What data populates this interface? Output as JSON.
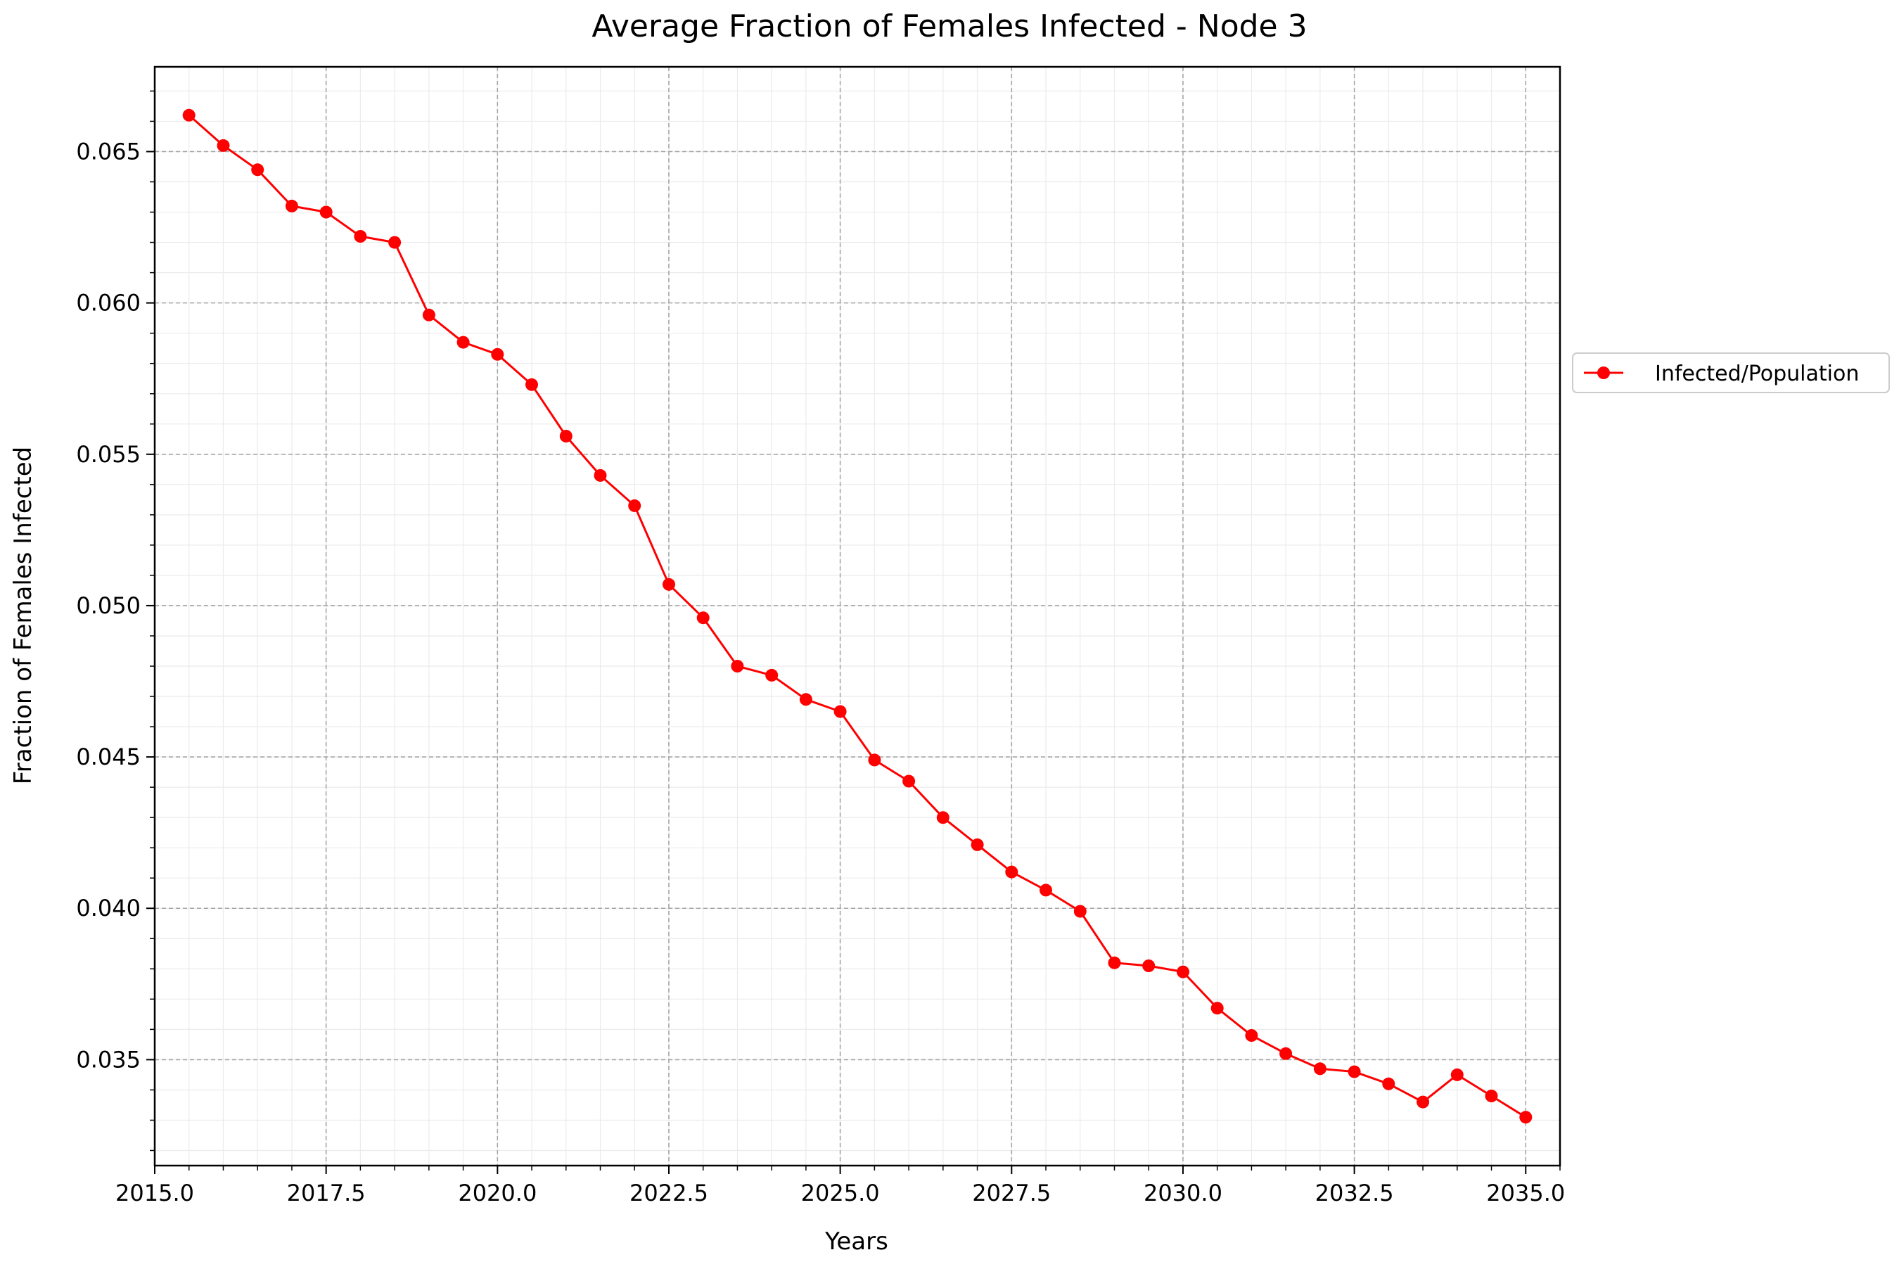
{
  "chart_data": {
    "type": "line",
    "title": "Average Fraction of Females Infected - Node 3",
    "xlabel": "Years",
    "ylabel": "Fraction of Females Infected",
    "xlim": [
      2015.0,
      2035.5
    ],
    "ylim": [
      0.0315,
      0.0678
    ],
    "x_ticks": [
      "2015.0",
      "2017.5",
      "2020.0",
      "2022.5",
      "2025.0",
      "2027.5",
      "2030.0",
      "2032.5",
      "2035.0"
    ],
    "y_ticks": [
      "0.035",
      "0.040",
      "0.045",
      "0.050",
      "0.055",
      "0.060",
      "0.065"
    ],
    "grid": true,
    "minor_grid": true,
    "legend_position": "right",
    "series": [
      {
        "name": "Infected/Population",
        "color": "#ff0000",
        "marker": "circle",
        "x": [
          2015.5,
          2016.0,
          2016.5,
          2017.0,
          2017.5,
          2018.0,
          2018.5,
          2019.0,
          2019.5,
          2020.0,
          2020.5,
          2021.0,
          2021.5,
          2022.0,
          2022.5,
          2023.0,
          2023.5,
          2024.0,
          2024.5,
          2025.0,
          2025.5,
          2026.0,
          2026.5,
          2027.0,
          2027.5,
          2028.0,
          2028.5,
          2029.0,
          2029.5,
          2030.0,
          2030.5,
          2031.0,
          2031.5,
          2032.0,
          2032.5,
          2033.0,
          2033.5,
          2034.0,
          2034.5,
          2035.0
        ],
        "y": [
          0.0662,
          0.0652,
          0.0644,
          0.0632,
          0.063,
          0.0622,
          0.062,
          0.0596,
          0.0587,
          0.0583,
          0.0573,
          0.0556,
          0.0543,
          0.0533,
          0.0507,
          0.0496,
          0.048,
          0.0477,
          0.0469,
          0.0465,
          0.0449,
          0.0442,
          0.043,
          0.0421,
          0.0412,
          0.0406,
          0.0399,
          0.0382,
          0.0381,
          0.0379,
          0.0367,
          0.0358,
          0.0352,
          0.0347,
          0.0346,
          0.0342,
          0.0336,
          0.0345,
          0.0338,
          0.0331
        ]
      }
    ]
  }
}
